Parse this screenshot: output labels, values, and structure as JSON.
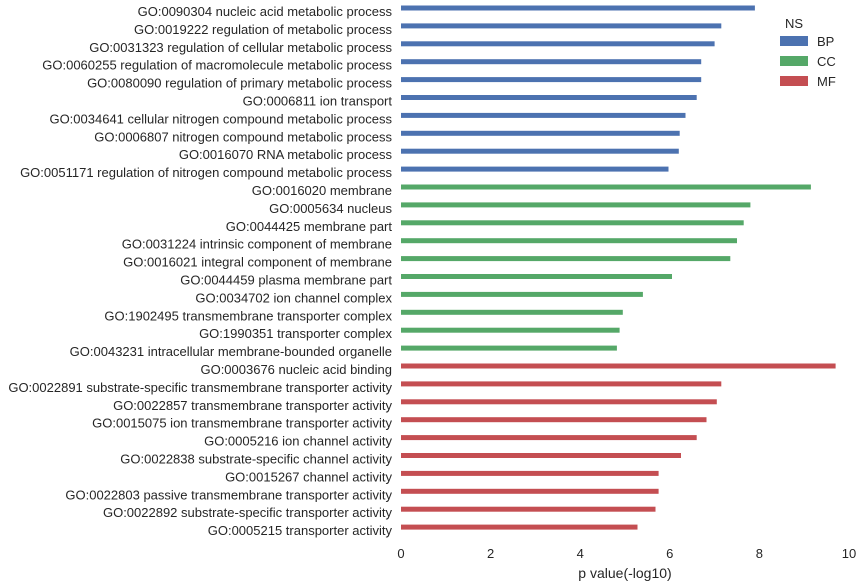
{
  "chart_data": {
    "type": "bar",
    "orientation": "horizontal",
    "title": "",
    "xlabel": "p value(-log10)",
    "ylabel": "",
    "xlim": [
      0,
      10
    ],
    "xticks": [
      "0",
      "2",
      "4",
      "6",
      "8",
      "10"
    ],
    "grid": false,
    "legend": {
      "title": "NS",
      "placement": "top-right",
      "entries": [
        {
          "name": "BP",
          "color": "#4c72b0"
        },
        {
          "name": "CC",
          "color": "#55a868"
        },
        {
          "name": "MF",
          "color": "#c44e52"
        }
      ]
    },
    "bars": [
      {
        "label": "GO:0090304 nucleic acid metabolic process",
        "value": 7.9,
        "ns": "BP"
      },
      {
        "label": "GO:0019222 regulation of metabolic process",
        "value": 7.15,
        "ns": "BP"
      },
      {
        "label": "GO:0031323 regulation of cellular metabolic process",
        "value": 7.0,
        "ns": "BP"
      },
      {
        "label": "GO:0060255 regulation of macromolecule metabolic process",
        "value": 6.7,
        "ns": "BP"
      },
      {
        "label": "GO:0080090 regulation of primary metabolic process",
        "value": 6.7,
        "ns": "BP"
      },
      {
        "label": "GO:0006811 ion transport",
        "value": 6.6,
        "ns": "BP"
      },
      {
        "label": "GO:0034641 cellular nitrogen compound metabolic process",
        "value": 6.35,
        "ns": "BP"
      },
      {
        "label": "GO:0006807 nitrogen compound metabolic process",
        "value": 6.22,
        "ns": "BP"
      },
      {
        "label": "GO:0016070 RNA metabolic process",
        "value": 6.2,
        "ns": "BP"
      },
      {
        "label": "GO:0051171 regulation of nitrogen compound metabolic process",
        "value": 5.97,
        "ns": "BP"
      },
      {
        "label": "GO:0016020 membrane",
        "value": 9.15,
        "ns": "CC"
      },
      {
        "label": "GO:0005634 nucleus",
        "value": 7.8,
        "ns": "CC"
      },
      {
        "label": "GO:0044425 membrane part",
        "value": 7.65,
        "ns": "CC"
      },
      {
        "label": "GO:0031224 intrinsic component of membrane",
        "value": 7.5,
        "ns": "CC"
      },
      {
        "label": "GO:0016021 integral component of membrane",
        "value": 7.35,
        "ns": "CC"
      },
      {
        "label": "GO:0044459 plasma membrane part",
        "value": 6.05,
        "ns": "CC"
      },
      {
        "label": "GO:0034702 ion channel complex",
        "value": 5.4,
        "ns": "CC"
      },
      {
        "label": "GO:1902495 transmembrane transporter complex",
        "value": 4.95,
        "ns": "CC"
      },
      {
        "label": "GO:1990351 transporter complex",
        "value": 4.88,
        "ns": "CC"
      },
      {
        "label": "GO:0043231 intracellular membrane-bounded organelle",
        "value": 4.82,
        "ns": "CC"
      },
      {
        "label": "GO:0003676 nucleic acid binding",
        "value": 9.7,
        "ns": "MF"
      },
      {
        "label": "GO:0022891 substrate-specific transmembrane transporter activity",
        "value": 7.15,
        "ns": "MF"
      },
      {
        "label": "GO:0022857 transmembrane transporter activity",
        "value": 7.05,
        "ns": "MF"
      },
      {
        "label": "GO:0015075 ion transmembrane transporter activity",
        "value": 6.82,
        "ns": "MF"
      },
      {
        "label": "GO:0005216 ion channel activity",
        "value": 6.6,
        "ns": "MF"
      },
      {
        "label": "GO:0022838 substrate-specific channel activity",
        "value": 6.25,
        "ns": "MF"
      },
      {
        "label": "GO:0015267 channel activity",
        "value": 5.75,
        "ns": "MF"
      },
      {
        "label": "GO:0022803 passive transmembrane transporter activity",
        "value": 5.75,
        "ns": "MF"
      },
      {
        "label": "GO:0022892 substrate-specific transporter activity",
        "value": 5.68,
        "ns": "MF"
      },
      {
        "label": "GO:0005215 transporter activity",
        "value": 5.28,
        "ns": "MF"
      }
    ]
  }
}
